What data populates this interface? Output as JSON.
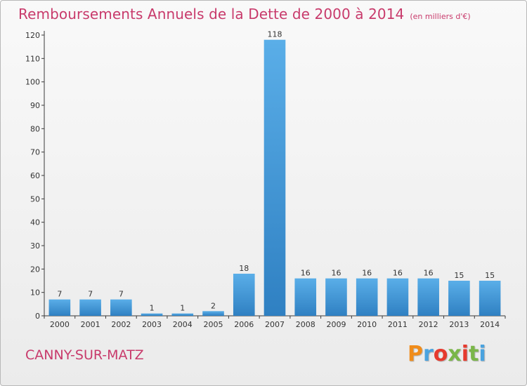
{
  "header": {
    "title": "Remboursements Annuels de la Dette de 2000 à 2014",
    "unit": "(en milliers d'€)"
  },
  "footer": {
    "city": "CANNY-SUR-MATZ",
    "brand": "Proxiti",
    "brand_colors": [
      "#f08c1a",
      "#4aa3df",
      "#e63a2e",
      "#7ab648",
      "#e63a2e",
      "#7ab648",
      "#4aa3df"
    ]
  },
  "colors": {
    "bar_light": "#5aaee8",
    "bar_dark": "#2f80c2",
    "title": "#c83a6b",
    "axis": "#3a3a3a",
    "grid": "#d9d9d9"
  },
  "chart_data": {
    "type": "bar",
    "title": "Remboursements Annuels de la Dette de 2000 à 2014",
    "subtitle": "(en milliers d'€)",
    "xlabel": "",
    "ylabel": "",
    "categories": [
      "2000",
      "2001",
      "2002",
      "2003",
      "2004",
      "2005",
      "2006",
      "2007",
      "2008",
      "2009",
      "2010",
      "2011",
      "2012",
      "2013",
      "2014"
    ],
    "values": [
      7,
      7,
      7,
      1,
      1,
      2,
      18,
      118,
      16,
      16,
      16,
      16,
      16,
      15,
      15
    ],
    "ylim": [
      0,
      120
    ],
    "yticks": [
      0,
      10,
      20,
      30,
      40,
      50,
      60,
      70,
      80,
      90,
      100,
      110,
      120
    ],
    "grid": false,
    "data_labels": true
  }
}
